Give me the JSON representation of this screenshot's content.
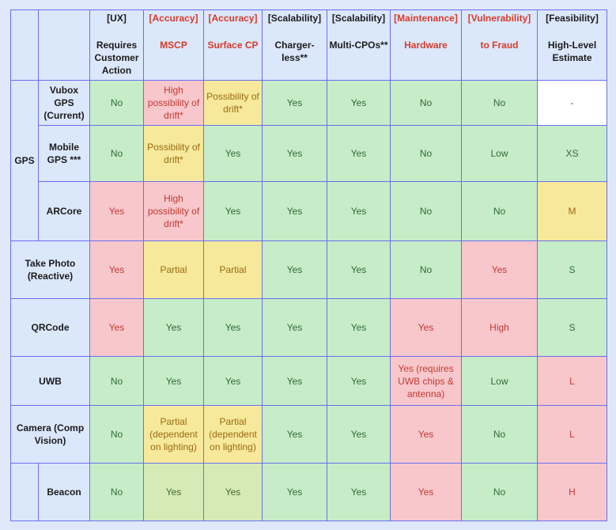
{
  "headers": [
    {
      "cat": "",
      "sub": "",
      "cat_red": false
    },
    {
      "cat": "",
      "sub": "",
      "cat_red": false
    },
    {
      "cat": "[UX]",
      "sub": "Requires Customer Action",
      "cat_red": false,
      "sub_red": false
    },
    {
      "cat": "[Accuracy]",
      "sub": "MSCP",
      "cat_red": true,
      "sub_red": true
    },
    {
      "cat": "[Accuracy]",
      "sub": "Surface CP",
      "cat_red": true,
      "sub_red": true
    },
    {
      "cat": "[Scalability]",
      "sub": "Charger-less**",
      "cat_red": false,
      "sub_red": false
    },
    {
      "cat": "[Scalability]",
      "sub": "Multi-CPOs**",
      "cat_red": false,
      "sub_red": false
    },
    {
      "cat": "[Maintenance]",
      "sub": "Hardware",
      "cat_red": true,
      "sub_red": true
    },
    {
      "cat": "[Vulnerability]",
      "sub": "to Fraud",
      "cat_red": true,
      "sub_red": true
    },
    {
      "cat": "[Feasibility]",
      "sub": "High-Level Estimate",
      "cat_red": false,
      "sub_red": false
    }
  ],
  "groups": {
    "gps": "GPS"
  },
  "rows": [
    {
      "group": "gps",
      "label": "Vubox GPS (Current)",
      "cells": [
        {
          "v": "No",
          "c": "g"
        },
        {
          "v": "High possibility of drift*",
          "c": "r"
        },
        {
          "v": "Possibility of drift*",
          "c": "y"
        },
        {
          "v": "Yes",
          "c": "g"
        },
        {
          "v": "Yes",
          "c": "g"
        },
        {
          "v": "No",
          "c": "g"
        },
        {
          "v": "No",
          "c": "g"
        },
        {
          "v": "-",
          "c": "w"
        }
      ]
    },
    {
      "group": "gps",
      "label": "Mobile GPS ***",
      "cells": [
        {
          "v": "No",
          "c": "g"
        },
        {
          "v": "Possibility of drift*",
          "c": "y"
        },
        {
          "v": "Yes",
          "c": "g"
        },
        {
          "v": "Yes",
          "c": "g"
        },
        {
          "v": "Yes",
          "c": "g"
        },
        {
          "v": "No",
          "c": "g"
        },
        {
          "v": "Low",
          "c": "g"
        },
        {
          "v": "XS",
          "c": "g"
        }
      ]
    },
    {
      "group": "gps",
      "label": "ARCore",
      "cells": [
        {
          "v": "Yes",
          "c": "r"
        },
        {
          "v": "High possibility of drift*",
          "c": "r"
        },
        {
          "v": "Yes",
          "c": "g"
        },
        {
          "v": "Yes",
          "c": "g"
        },
        {
          "v": "Yes",
          "c": "g"
        },
        {
          "v": "No",
          "c": "g"
        },
        {
          "v": "No",
          "c": "g"
        },
        {
          "v": "M",
          "c": "y"
        }
      ]
    },
    {
      "group": null,
      "label": "Take Photo (Reactive)",
      "cells": [
        {
          "v": "Yes",
          "c": "r"
        },
        {
          "v": "Partial",
          "c": "y"
        },
        {
          "v": "Partial",
          "c": "y"
        },
        {
          "v": "Yes",
          "c": "g"
        },
        {
          "v": "Yes",
          "c": "g"
        },
        {
          "v": "No",
          "c": "g"
        },
        {
          "v": "Yes",
          "c": "r"
        },
        {
          "v": "S",
          "c": "g"
        }
      ]
    },
    {
      "group": null,
      "label": "QRCode",
      "cells": [
        {
          "v": "Yes",
          "c": "r"
        },
        {
          "v": "Yes",
          "c": "g"
        },
        {
          "v": "Yes",
          "c": "g"
        },
        {
          "v": "Yes",
          "c": "g"
        },
        {
          "v": "Yes",
          "c": "g"
        },
        {
          "v": "Yes",
          "c": "r"
        },
        {
          "v": "High",
          "c": "r"
        },
        {
          "v": "S",
          "c": "g"
        }
      ]
    },
    {
      "group": null,
      "label": "UWB",
      "cells": [
        {
          "v": "No",
          "c": "g"
        },
        {
          "v": "Yes",
          "c": "g"
        },
        {
          "v": "Yes",
          "c": "g"
        },
        {
          "v": "Yes",
          "c": "g"
        },
        {
          "v": "Yes",
          "c": "g"
        },
        {
          "v": "Yes (requires UWB chips & antenna)",
          "c": "r"
        },
        {
          "v": "Low",
          "c": "g"
        },
        {
          "v": "L",
          "c": "r"
        }
      ]
    },
    {
      "group": null,
      "label": "Camera (Comp Vision)",
      "cells": [
        {
          "v": "No",
          "c": "g"
        },
        {
          "v": "Partial (dependent on lighting)",
          "c": "y"
        },
        {
          "v": "Partial (dependent on lighting)",
          "c": "y"
        },
        {
          "v": "Yes",
          "c": "g"
        },
        {
          "v": "Yes",
          "c": "g"
        },
        {
          "v": "Yes",
          "c": "r"
        },
        {
          "v": "No",
          "c": "g"
        },
        {
          "v": "L",
          "c": "r"
        }
      ]
    },
    {
      "group": "blank",
      "label": "Beacon",
      "cells": [
        {
          "v": "No",
          "c": "g"
        },
        {
          "v": "Yes",
          "c": "gy"
        },
        {
          "v": "Yes",
          "c": "gy"
        },
        {
          "v": "Yes",
          "c": "g"
        },
        {
          "v": "Yes",
          "c": "g"
        },
        {
          "v": "Yes",
          "c": "r"
        },
        {
          "v": "No",
          "c": "g"
        },
        {
          "v": "H",
          "c": "r"
        }
      ]
    }
  ],
  "colors": {
    "green": "#c7ecc8",
    "red": "#f7c7cb",
    "yellow": "#f7e99c",
    "header": "#dbe7fa",
    "border": "#6a6ff0"
  }
}
